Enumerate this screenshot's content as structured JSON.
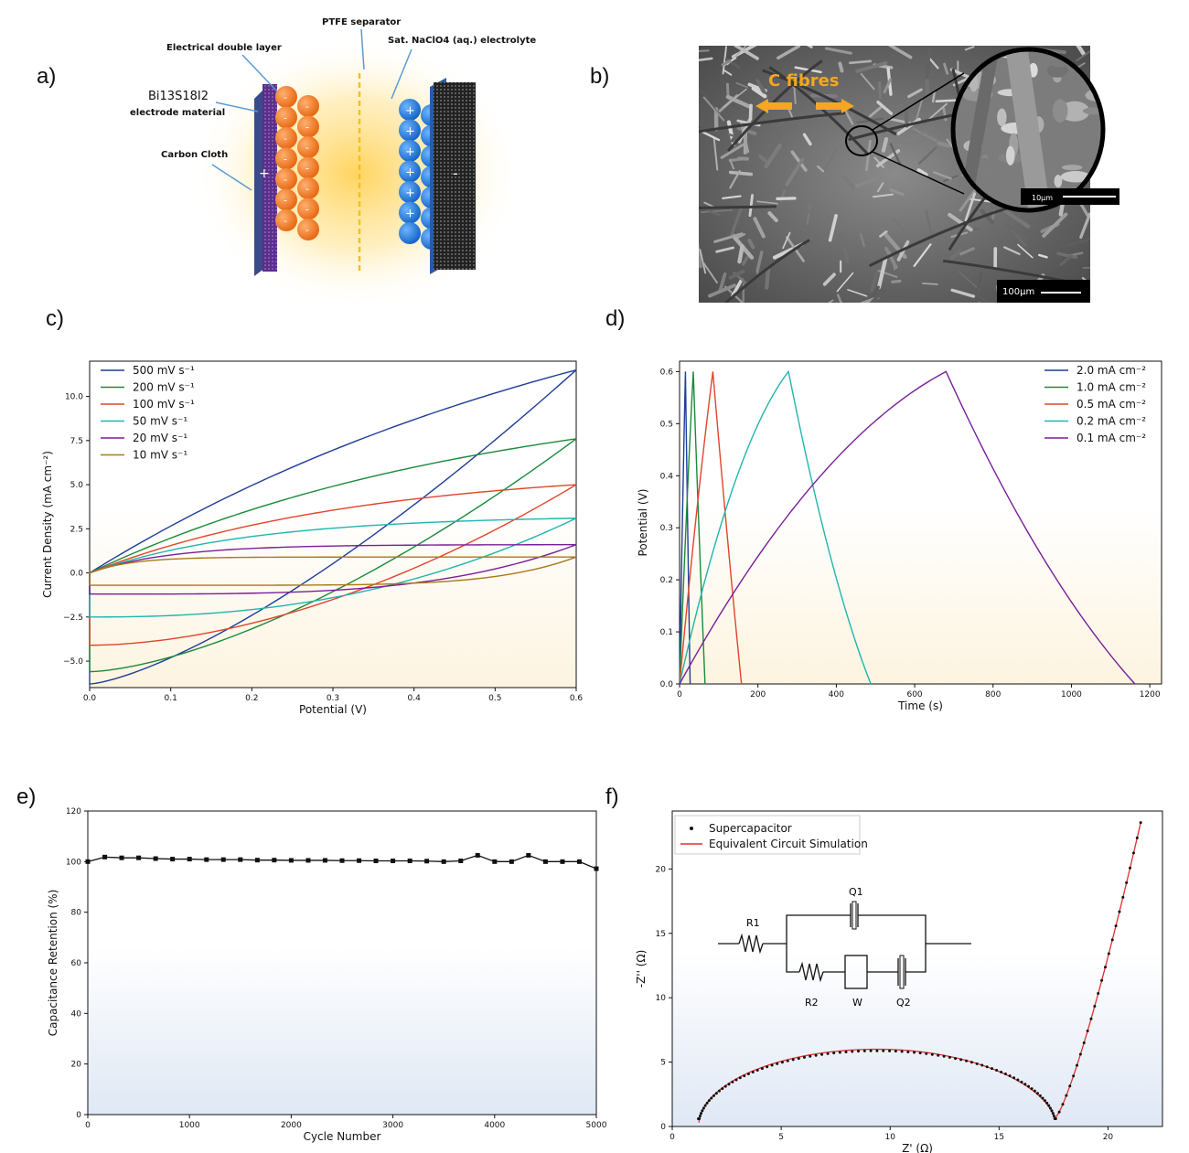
{
  "panels": {
    "a": {
      "letter": "a)"
    },
    "b": {
      "letter": "b)"
    },
    "c": {
      "letter": "c)"
    },
    "d": {
      "letter": "d)"
    },
    "e": {
      "letter": "e)"
    },
    "f": {
      "letter": "f)"
    }
  },
  "schematic": {
    "label_double_layer": "Electrical double layer",
    "label_separator": "PTFE separator",
    "label_electrolyte": "Sat. NaClO4 (aq.) electrolyte",
    "label_electrode_formula": "Bi13S18I2",
    "label_electrode_material": "electrode material",
    "label_carbon_cloth": "Carbon Cloth",
    "plus": "+",
    "minus": "-"
  },
  "sem": {
    "fibres_label": "C fibres",
    "scale_main": "100μm",
    "scale_inset": "10μm"
  },
  "chart_data": [
    {
      "id": "c",
      "type": "line",
      "xlabel": "Potential (V)",
      "ylabel": "Current Density (mA cm⁻²)",
      "xlim": [
        0,
        0.6
      ],
      "ylim": [
        -6.5,
        12
      ],
      "xticks": [
        "0.0",
        "0.1",
        "0.2",
        "0.3",
        "0.4",
        "0.5",
        "0.6"
      ],
      "yticks": [
        "−5.0",
        "−2.5",
        "0.0",
        "2.5",
        "5.0",
        "7.5",
        "10.0"
      ],
      "legend_position": "top-left",
      "series": [
        {
          "name": "500 mV s⁻¹",
          "color": "#1f3d99",
          "upper_end": 11.5,
          "lower_start": -6.3,
          "shape": 0.85
        },
        {
          "name": "200 mV s⁻¹",
          "color": "#1a8a3a",
          "upper_end": 7.6,
          "lower_start": -5.6,
          "shape": 1.2
        },
        {
          "name": "100 mV s⁻¹",
          "color": "#e0452a",
          "upper_end": 5.0,
          "lower_start": -4.1,
          "shape": 1.8
        },
        {
          "name": "50 mV s⁻¹",
          "color": "#1fb5b0",
          "upper_end": 3.1,
          "lower_start": -2.5,
          "shape": 3.0
        },
        {
          "name": "20 mV s⁻¹",
          "color": "#7a1f9a",
          "upper_end": 1.6,
          "lower_start": -1.2,
          "shape": 6.0
        },
        {
          "name": "10 mV s⁻¹",
          "color": "#a8791a",
          "upper_end": 0.9,
          "lower_start": -0.7,
          "shape": 12.0
        }
      ]
    },
    {
      "id": "d",
      "type": "line",
      "xlabel": "Time (s)",
      "ylabel": "Potential (V)",
      "xlim": [
        0,
        1230
      ],
      "ylim": [
        0,
        0.62
      ],
      "xticks": [
        "0",
        "200",
        "400",
        "600",
        "800",
        "1000",
        "1200"
      ],
      "yticks": [
        "0.0",
        "0.1",
        "0.2",
        "0.3",
        "0.4",
        "0.5",
        "0.6"
      ],
      "legend_position": "top-right",
      "series": [
        {
          "name": "2.0 mA cm⁻²",
          "color": "#1f3d99",
          "peak_time": 15,
          "end_time": 27
        },
        {
          "name": "1.0 mA cm⁻²",
          "color": "#1a8a3a",
          "peak_time": 35,
          "end_time": 65
        },
        {
          "name": "0.5 mA cm⁻²",
          "color": "#e0452a",
          "peak_time": 85,
          "end_time": 158
        },
        {
          "name": "0.2 mA cm⁻²",
          "color": "#1fb5b0",
          "peak_time": 278,
          "end_time": 488
        },
        {
          "name": "0.1 mA cm⁻²",
          "color": "#7a1f9a",
          "peak_time": 680,
          "end_time": 1162
        }
      ]
    },
    {
      "id": "e",
      "type": "line",
      "xlabel": "Cycle Number",
      "ylabel": "Capacitance Retention (%)",
      "xlim": [
        0,
        5000
      ],
      "ylim": [
        0,
        120
      ],
      "xticks": [
        "0",
        "1000",
        "2000",
        "3000",
        "4000",
        "5000"
      ],
      "yticks": [
        "0",
        "20",
        "40",
        "60",
        "80",
        "100",
        "120"
      ],
      "x": [
        0,
        167,
        333,
        500,
        667,
        833,
        1000,
        1167,
        1333,
        1500,
        1667,
        1833,
        2000,
        2167,
        2333,
        2500,
        2667,
        2833,
        3000,
        3167,
        3333,
        3500,
        3667,
        3833,
        4000,
        4167,
        4333,
        4500,
        4667,
        4833,
        5000
      ],
      "y": [
        100,
        101.8,
        101.5,
        101.5,
        101.2,
        101,
        101,
        100.8,
        100.8,
        100.8,
        100.6,
        100.6,
        100.5,
        100.5,
        100.5,
        100.4,
        100.4,
        100.3,
        100.3,
        100.3,
        100.2,
        100,
        100.3,
        102.5,
        100,
        100,
        102.5,
        100,
        100,
        100,
        97.2
      ]
    },
    {
      "id": "f",
      "type": "scatter",
      "xlabel": "Z' (Ω)",
      "ylabel": "-Z'' (Ω)",
      "xlim": [
        0,
        22.5
      ],
      "ylim": [
        0,
        24.5
      ],
      "xticks": [
        "0",
        "5",
        "10",
        "15",
        "20"
      ],
      "yticks": [
        "0",
        "5",
        "10",
        "15",
        "20"
      ],
      "legend_position": "top-left",
      "series": [
        {
          "name": "Supercapacitor",
          "color": "#000000"
        },
        {
          "name": "Equivalent Circuit Simulation",
          "color": "#e03030"
        }
      ],
      "arc": {
        "x_start": 1.2,
        "x_end": 17.6,
        "peak": 6.0,
        "tail_x_end": 21.5,
        "tail_y_end": 23.6
      },
      "circuit_labels": {
        "r1": "R1",
        "r2": "R2",
        "w": "W",
        "q1": "Q1",
        "q2": "Q2"
      }
    }
  ]
}
